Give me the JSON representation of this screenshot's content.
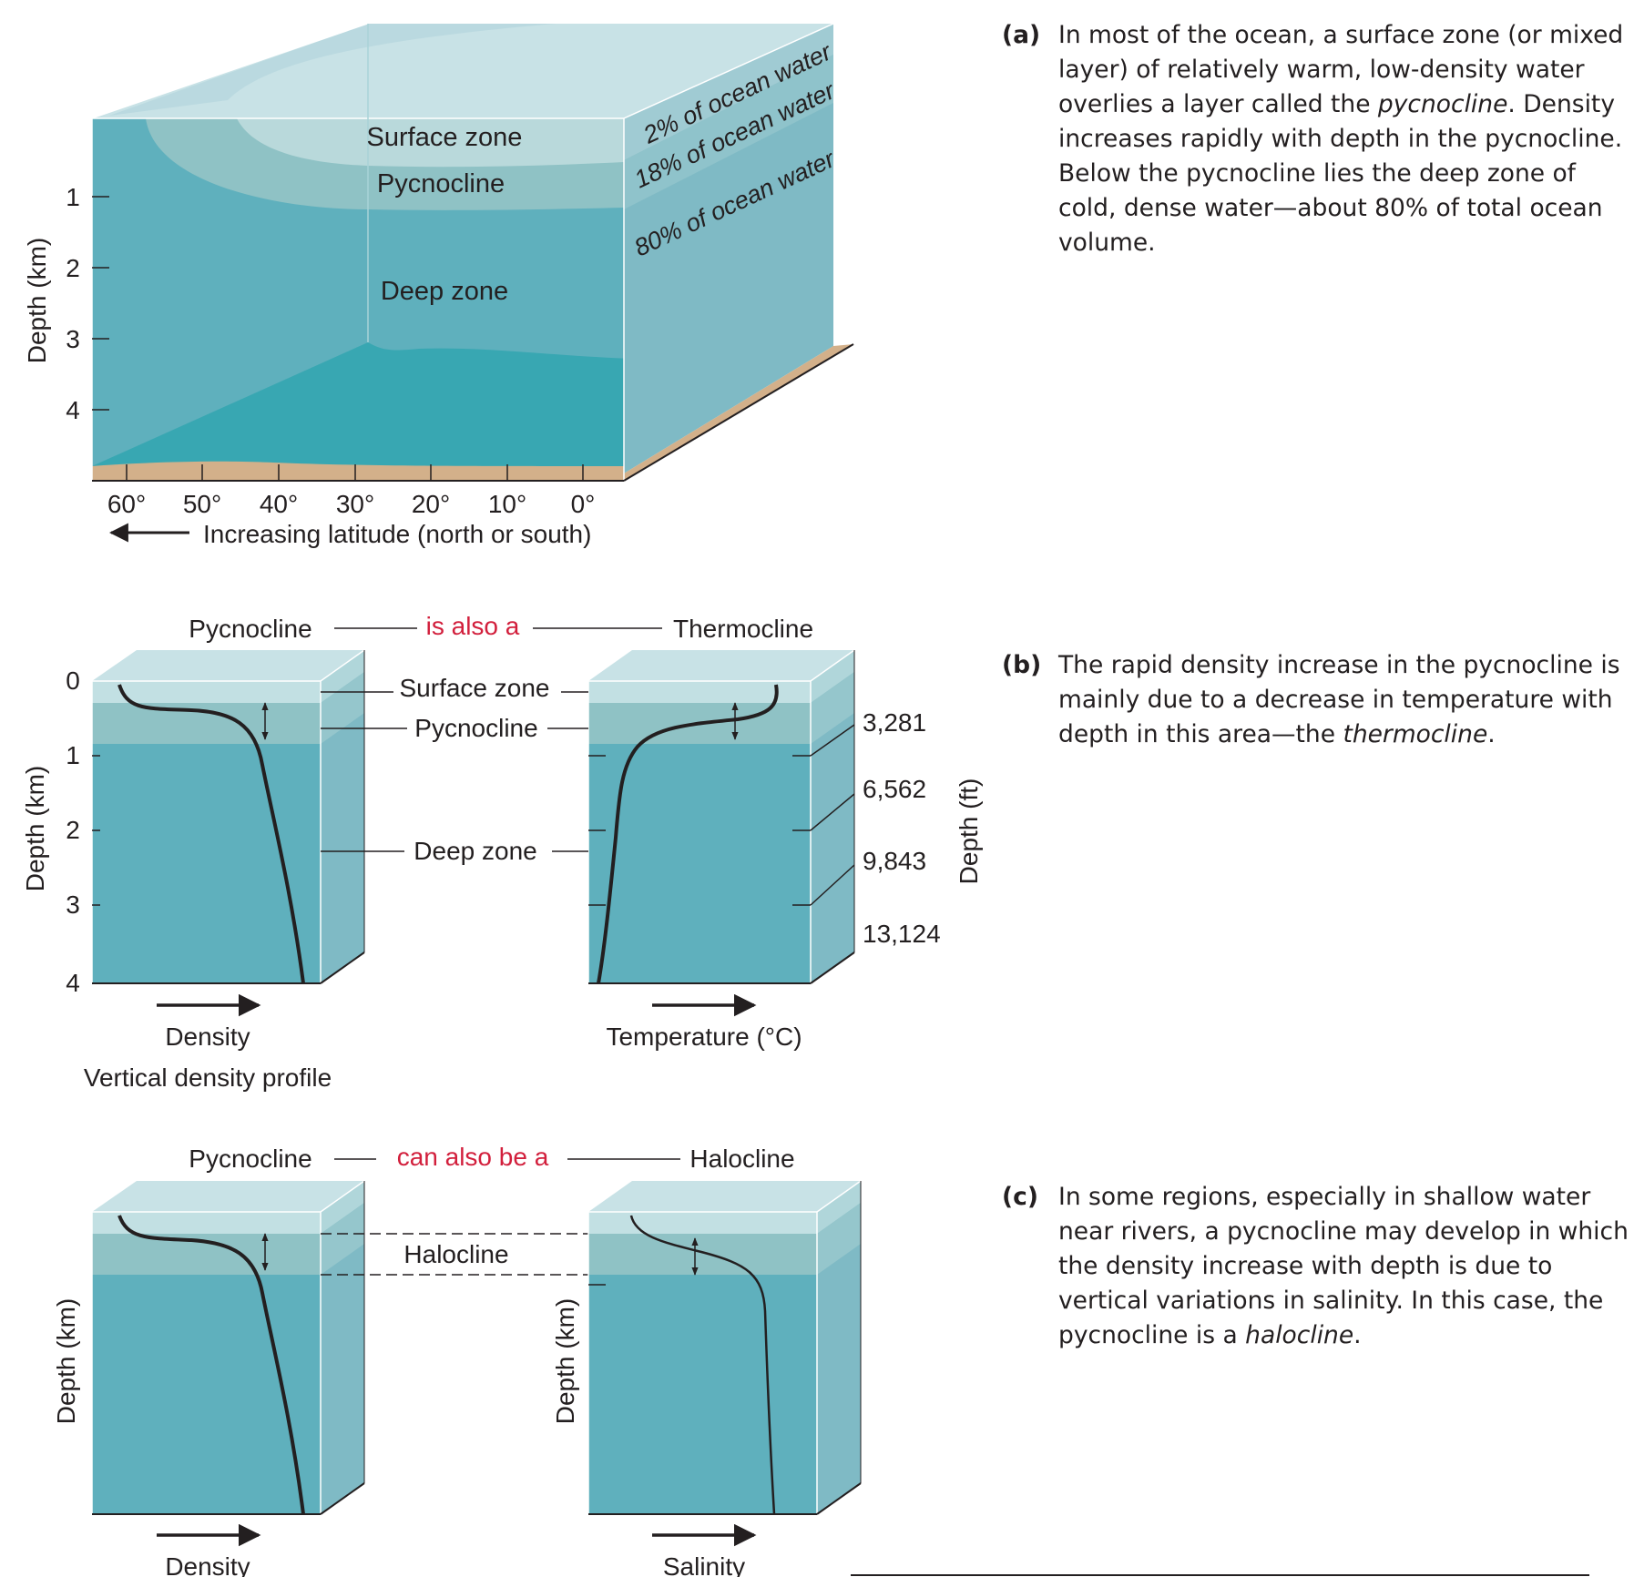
{
  "panel_a": {
    "zones": {
      "surface": "Surface zone",
      "pycnocline": "Pycnocline",
      "deep": "Deep zone"
    },
    "percentages": [
      "2% of ocean water",
      "18% of ocean water",
      "80% of ocean water"
    ],
    "y_axis_label": "Depth (km)",
    "y_ticks": [
      "1",
      "2",
      "3",
      "4"
    ],
    "latitudes": [
      "60°",
      "50°",
      "40°",
      "30°",
      "20°",
      "10°",
      "0°"
    ],
    "x_axis_label": "Increasing latitude (north or south)",
    "caption": {
      "tag": "(a)",
      "text_1": "In most of the ocean, a surface zone (or mixed layer) of relatively warm, low-density water overlies a layer called the ",
      "em_1": "pycnocline",
      "text_2": ". Density increases rapidly with depth in the pycnocline. Below the pycnocline lies the deep zone of cold, dense water—about 80% of total ocean volume."
    }
  },
  "panel_b": {
    "left_title": "Pycnocline",
    "link_text": "is also a",
    "right_title": "Thermocline",
    "zone_labels": [
      "Surface zone",
      "Pycnocline",
      "Deep zone"
    ],
    "y_axis_label": "Depth (km)",
    "y_ticks": [
      "0",
      "1",
      "2",
      "3",
      "4"
    ],
    "ft_ticks": [
      "3,281",
      "6,562",
      "9,843",
      "13,124"
    ],
    "ft_axis_label": "Depth (ft)",
    "left_xlabel": "Density",
    "right_xlabel": "Temperature (°C)",
    "profile_label": "Vertical density profile",
    "caption": {
      "tag": "(b)",
      "text_1": "The rapid density increase in the pycnocline is mainly due to a decrease in temperature with depth in this area—the ",
      "em_1": "thermocline",
      "text_2": "."
    }
  },
  "panel_c": {
    "left_title": "Pycnocline",
    "link_text": "can also be a",
    "right_title": "Halocline",
    "mid_label": "Halocline",
    "y_axis_label": "Depth (km)",
    "left_xlabel": "Density",
    "right_xlabel": "Salinity",
    "caption": {
      "tag": "(c)",
      "text_1": "In some regions, especially in shallow water near rivers, a pycnocline may develop in which the density increase with depth is due to vertical variations in salinity. In this case, the pycnocline is a ",
      "em_1": "halocline",
      "text_2": "."
    }
  },
  "colors": {
    "surface": "#c9e3e6",
    "pycnocline": "#8fc2c5",
    "deep": "#5fb0bd",
    "side": "#7fbac5",
    "seafloor": "#d3b08a",
    "accent_red": "#d21f3c",
    "text": "#231f20"
  }
}
